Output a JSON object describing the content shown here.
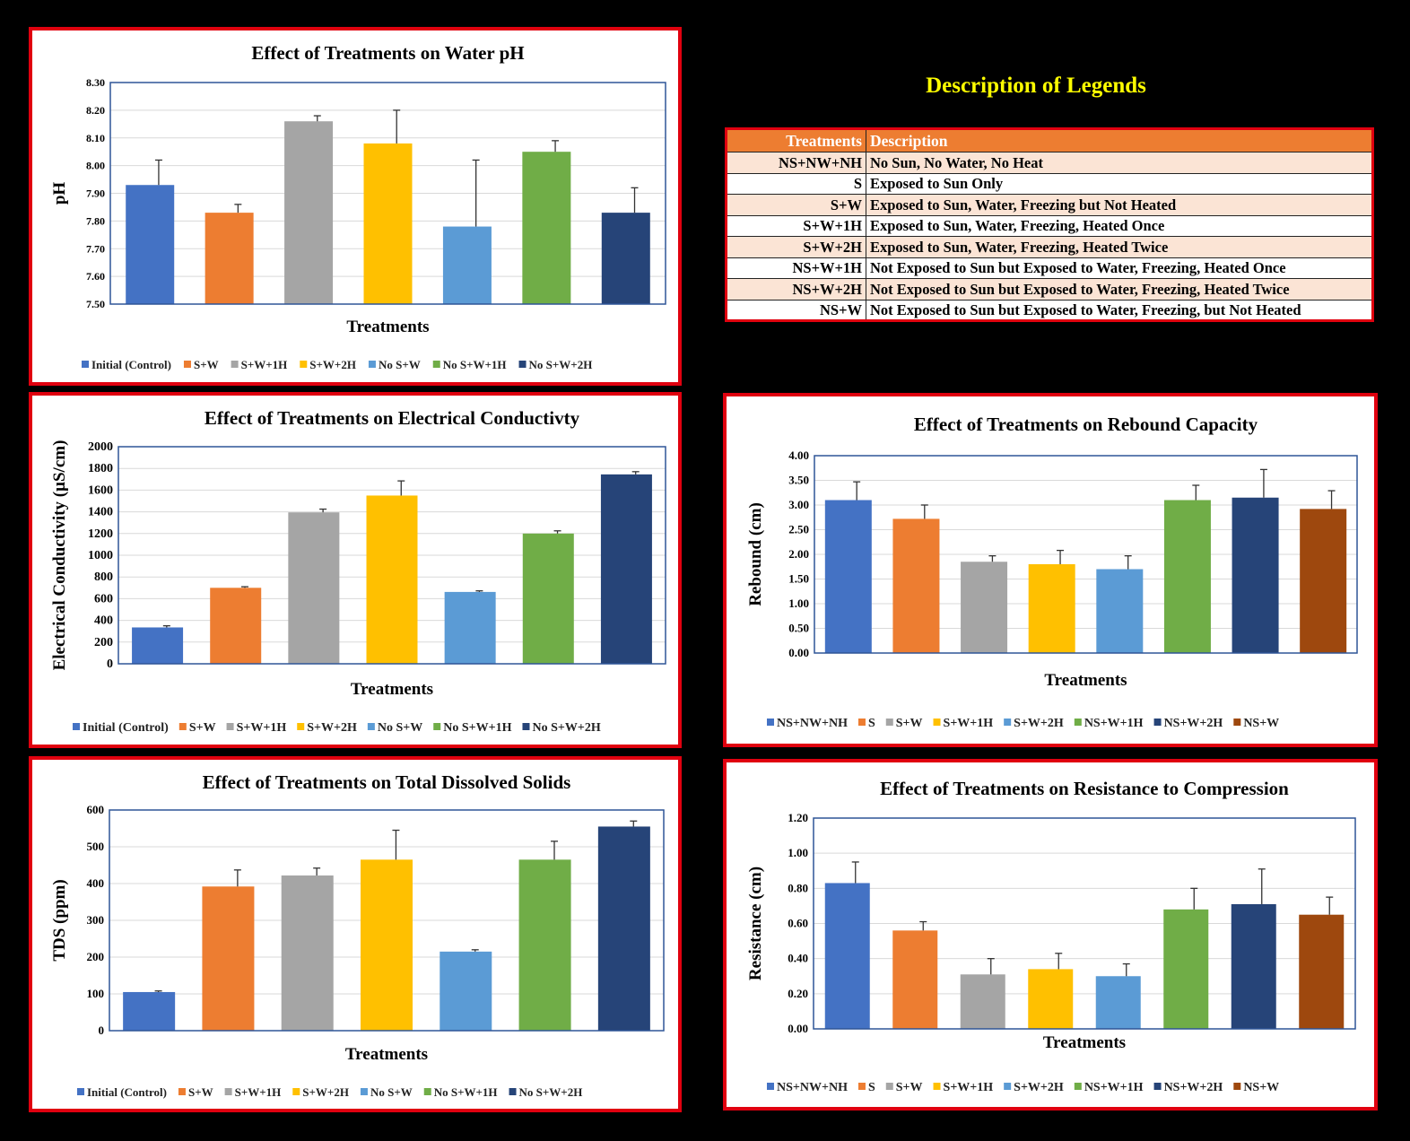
{
  "legend_panel": {
    "title": "Description of Legends",
    "headers": [
      "Treatments",
      "Description"
    ],
    "rows": [
      [
        "NS+NW+NH",
        "No Sun, No Water, No Heat"
      ],
      [
        "S",
        "Exposed to Sun Only"
      ],
      [
        "S+W",
        "Exposed to Sun, Water, Freezing but Not Heated"
      ],
      [
        "S+W+1H",
        "Exposed to Sun, Water, Freezing, Heated Once"
      ],
      [
        "S+W+2H",
        "Exposed to Sun, Water, Freezing, Heated Twice"
      ],
      [
        "NS+W+1H",
        "Not Exposed to Sun but Exposed to Water, Freezing, Heated Once"
      ],
      [
        "NS+W+2H",
        "Not Exposed to Sun but Exposed to Water, Freezing, Heated Twice"
      ],
      [
        "NS+W",
        "Not Exposed to Sun but Exposed to Water, Freezing, but Not Heated"
      ]
    ],
    "colors": {
      "header_bg": "#ed7d31",
      "odd_row_bg": "#fbe4d5",
      "border": "#e0000f"
    }
  },
  "chart_data": [
    {
      "id": "ph",
      "type": "bar",
      "title": "Effect of Treatments  on Water  pH",
      "xlabel": "Treatments",
      "ylabel": "pH",
      "ylim": [
        7.5,
        8.3
      ],
      "ytick_step": 0.1,
      "tick_decimals": 2,
      "series": [
        {
          "name": "Initial (Control)",
          "value": 7.93,
          "error": 0.09,
          "color": "#4472c4"
        },
        {
          "name": "S+W",
          "value": 7.83,
          "error": 0.03,
          "color": "#ed7d31"
        },
        {
          "name": "S+W+1H",
          "value": 8.16,
          "error": 0.02,
          "color": "#a5a5a5"
        },
        {
          "name": "S+W+2H",
          "value": 8.08,
          "error": 0.12,
          "color": "#ffc000"
        },
        {
          "name": "No S+W",
          "value": 7.78,
          "error": 0.24,
          "color": "#5b9bd5"
        },
        {
          "name": "No S+W+1H",
          "value": 8.05,
          "error": 0.04,
          "color": "#70ad47"
        },
        {
          "name": "No S+W+2H",
          "value": 7.83,
          "error": 0.09,
          "color": "#264478"
        }
      ]
    },
    {
      "id": "ec",
      "type": "bar",
      "title": "Effect of Treatments  on Electrical Conductivty",
      "xlabel": "Treatments",
      "ylabel": "Electrical Conductivity (µS/cm)",
      "ylim": [
        0,
        2000
      ],
      "ytick_step": 200,
      "tick_decimals": 0,
      "series": [
        {
          "name": "Initial (Control)",
          "value": 335,
          "error": 15,
          "color": "#4472c4"
        },
        {
          "name": "S+W",
          "value": 700,
          "error": 10,
          "color": "#ed7d31"
        },
        {
          "name": "S+W+1H",
          "value": 1395,
          "error": 30,
          "color": "#a5a5a5"
        },
        {
          "name": "S+W+2H",
          "value": 1550,
          "error": 135,
          "color": "#ffc000"
        },
        {
          "name": "No S+W",
          "value": 662,
          "error": 10,
          "color": "#5b9bd5"
        },
        {
          "name": "No S+W+1H",
          "value": 1200,
          "error": 25,
          "color": "#70ad47"
        },
        {
          "name": "No S+W+2H",
          "value": 1745,
          "error": 25,
          "color": "#264478"
        }
      ]
    },
    {
      "id": "tds",
      "type": "bar",
      "title": "Effect of Treatments  on Total  Dissolved  Solids",
      "xlabel": "Treatments",
      "ylabel": "TDS (ppm)",
      "ylim": [
        0,
        600
      ],
      "ytick_step": 100,
      "tick_decimals": 0,
      "series": [
        {
          "name": "Initial (Control)",
          "value": 105,
          "error": 3,
          "color": "#4472c4"
        },
        {
          "name": "S+W",
          "value": 392,
          "error": 45,
          "color": "#ed7d31"
        },
        {
          "name": "S+W+1H",
          "value": 422,
          "error": 20,
          "color": "#a5a5a5"
        },
        {
          "name": "S+W+2H",
          "value": 465,
          "error": 80,
          "color": "#ffc000"
        },
        {
          "name": "No S+W",
          "value": 215,
          "error": 5,
          "color": "#5b9bd5"
        },
        {
          "name": "No S+W+1H",
          "value": 465,
          "error": 50,
          "color": "#70ad47"
        },
        {
          "name": "No S+W+2H",
          "value": 555,
          "error": 15,
          "color": "#264478"
        }
      ]
    },
    {
      "id": "reb",
      "type": "bar",
      "title": "Effect of Treatments  on Rebound  Capacity",
      "xlabel": "Treatments",
      "ylabel": "Rebound (cm)",
      "ylim": [
        0,
        4
      ],
      "ytick_step": 0.5,
      "tick_decimals": 2,
      "series": [
        {
          "name": "NS+NW+NH",
          "value": 3.1,
          "error": 0.37,
          "color": "#4472c4"
        },
        {
          "name": "S",
          "value": 2.72,
          "error": 0.28,
          "color": "#ed7d31"
        },
        {
          "name": "S+W",
          "value": 1.85,
          "error": 0.12,
          "color": "#a5a5a5"
        },
        {
          "name": "S+W+1H",
          "value": 1.8,
          "error": 0.28,
          "color": "#ffc000"
        },
        {
          "name": "S+W+2H",
          "value": 1.7,
          "error": 0.27,
          "color": "#5b9bd5"
        },
        {
          "name": "NS+W+1H",
          "value": 3.1,
          "error": 0.3,
          "color": "#70ad47"
        },
        {
          "name": "NS+W+2H",
          "value": 3.15,
          "error": 0.57,
          "color": "#264478"
        },
        {
          "name": "NS+W",
          "value": 2.92,
          "error": 0.37,
          "color": "#9e480e"
        }
      ]
    },
    {
      "id": "res",
      "type": "bar",
      "title": "Effect of Treatments  on Resistance to Compression",
      "xlabel": "Treatments",
      "ylabel": "Resistance (cm)",
      "ylim": [
        0,
        1.2
      ],
      "ytick_step": 0.2,
      "tick_decimals": 2,
      "series": [
        {
          "name": "NS+NW+NH",
          "value": 0.83,
          "error": 0.12,
          "color": "#4472c4"
        },
        {
          "name": "S",
          "value": 0.56,
          "error": 0.05,
          "color": "#ed7d31"
        },
        {
          "name": "S+W",
          "value": 0.31,
          "error": 0.09,
          "color": "#a5a5a5"
        },
        {
          "name": "S+W+1H",
          "value": 0.34,
          "error": 0.09,
          "color": "#ffc000"
        },
        {
          "name": "S+W+2H",
          "value": 0.3,
          "error": 0.07,
          "color": "#5b9bd5"
        },
        {
          "name": "NS+W+1H",
          "value": 0.68,
          "error": 0.12,
          "color": "#70ad47"
        },
        {
          "name": "NS+W+2H",
          "value": 0.71,
          "error": 0.2,
          "color": "#264478"
        },
        {
          "name": "NS+W",
          "value": 0.65,
          "error": 0.1,
          "color": "#9e480e"
        }
      ]
    }
  ]
}
